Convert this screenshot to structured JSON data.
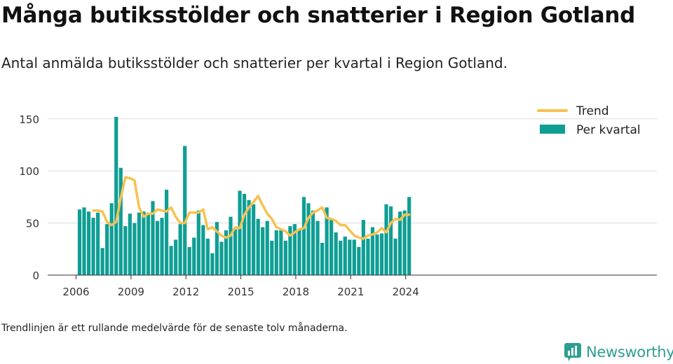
{
  "title": "Många butiksstölder och snatterier i Region Gotland",
  "subtitle": "Antal anmälda butiksstölder och snatterier per kvartal i Region Gotland.",
  "note": "Trendlinjen är ett rullande medelvärde för de senaste tolv månaderna.",
  "brand": {
    "name": "Newsworthy",
    "icon": "newsworthy-logo-icon",
    "color": "#2e9e92"
  },
  "chart_data": {
    "type": "bar",
    "x_start": "2006-Q1",
    "x_ticks": [
      "2006",
      "2009",
      "2012",
      "2015",
      "2018",
      "2021",
      "2024"
    ],
    "y_ticks": [
      "0",
      "50",
      "100",
      "150"
    ],
    "ylim": [
      0,
      160
    ],
    "grid": true,
    "legend_position": "top-right",
    "series": [
      {
        "name": "Per kvartal",
        "kind": "bar",
        "color": "#0f9e94",
        "values": [
          63,
          65,
          61,
          55,
          60,
          26,
          49,
          69,
          152,
          103,
          47,
          59,
          50,
          60,
          61,
          60,
          71,
          52,
          55,
          82,
          28,
          34,
          49,
          124,
          27,
          36,
          62,
          48,
          35,
          21,
          51,
          32,
          43,
          56,
          44,
          81,
          78,
          72,
          68,
          54,
          46,
          52,
          33,
          43,
          43,
          33,
          47,
          49,
          44,
          75,
          69,
          62,
          52,
          31,
          65,
          53,
          41,
          33,
          37,
          34,
          34,
          27,
          53,
          35,
          46,
          39,
          40,
          68,
          66,
          35,
          61,
          62,
          75
        ]
      },
      {
        "name": "Trend",
        "kind": "line",
        "color": "#f6c251",
        "values": [
          null,
          null,
          null,
          62,
          62,
          61,
          51,
          48,
          51,
          74,
          94,
          93,
          91,
          65,
          56,
          59,
          59,
          63,
          62,
          61,
          65,
          56,
          50,
          50,
          60,
          60,
          60,
          63,
          44,
          46,
          42,
          38,
          36,
          38,
          46,
          45,
          58,
          65,
          70,
          76,
          67,
          59,
          54,
          46,
          44,
          42,
          38,
          41,
          44,
          45,
          55,
          60,
          62,
          65,
          55,
          54,
          52,
          48,
          48,
          43,
          38,
          36,
          35,
          38,
          39,
          41,
          45,
          41,
          50,
          54,
          53,
          58,
          58
        ]
      }
    ]
  }
}
